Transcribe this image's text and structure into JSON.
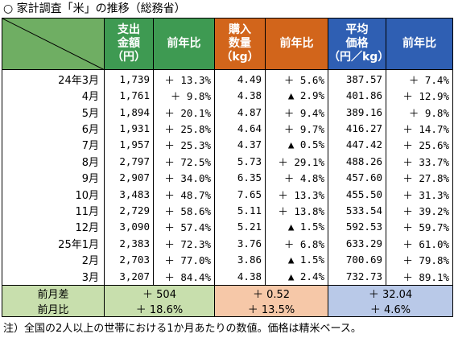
{
  "title": "○ 家計調査「米」の推移（総務省）",
  "headers": {
    "spend": [
      "支出",
      "金額",
      "（円）"
    ],
    "qty": [
      "購入",
      "数量",
      "（kg）"
    ],
    "price": [
      "平均",
      "価格",
      "（円／kg）"
    ],
    "yoy": "前年比"
  },
  "rows": [
    {
      "label": "24年3月",
      "spend": "1,739",
      "spend_yoy": "＋ 13.3%",
      "qty": "4.49",
      "qty_yoy": "＋ 5.6%",
      "price": "387.57",
      "price_yoy": "＋ 7.4%"
    },
    {
      "label": "4月",
      "spend": "1,761",
      "spend_yoy": "＋ 9.8%",
      "qty": "4.38",
      "qty_yoy": "▲ 2.9%",
      "price": "401.86",
      "price_yoy": "＋ 12.9%"
    },
    {
      "label": "5月",
      "spend": "1,894",
      "spend_yoy": "＋ 20.1%",
      "qty": "4.87",
      "qty_yoy": "＋ 9.4%",
      "price": "389.16",
      "price_yoy": "＋ 9.8%"
    },
    {
      "label": "6月",
      "spend": "1,931",
      "spend_yoy": "＋ 25.8%",
      "qty": "4.64",
      "qty_yoy": "＋ 9.7%",
      "price": "416.27",
      "price_yoy": "＋ 14.7%"
    },
    {
      "label": "7月",
      "spend": "1,957",
      "spend_yoy": "＋ 25.3%",
      "qty": "4.37",
      "qty_yoy": "▲ 0.5%",
      "price": "447.42",
      "price_yoy": "＋ 25.6%"
    },
    {
      "label": "8月",
      "spend": "2,797",
      "spend_yoy": "＋ 72.5%",
      "qty": "5.73",
      "qty_yoy": "＋ 29.1%",
      "price": "488.26",
      "price_yoy": "＋ 33.7%"
    },
    {
      "label": "9月",
      "spend": "2,907",
      "spend_yoy": "＋ 34.0%",
      "qty": "6.35",
      "qty_yoy": "＋ 4.8%",
      "price": "457.60",
      "price_yoy": "＋ 27.8%"
    },
    {
      "label": "10月",
      "spend": "3,483",
      "spend_yoy": "＋ 48.7%",
      "qty": "7.65",
      "qty_yoy": "＋ 13.3%",
      "price": "455.50",
      "price_yoy": "＋ 31.3%"
    },
    {
      "label": "11月",
      "spend": "2,729",
      "spend_yoy": "＋ 58.6%",
      "qty": "5.11",
      "qty_yoy": "＋ 13.8%",
      "price": "533.54",
      "price_yoy": "＋ 39.2%"
    },
    {
      "label": "12月",
      "spend": "3,090",
      "spend_yoy": "＋ 57.4%",
      "qty": "5.21",
      "qty_yoy": "▲ 1.5%",
      "price": "592.53",
      "price_yoy": "＋ 59.7%"
    },
    {
      "label": "25年1月",
      "spend": "2,383",
      "spend_yoy": "＋ 72.3%",
      "qty": "3.76",
      "qty_yoy": "＋ 6.8%",
      "price": "633.29",
      "price_yoy": "＋ 61.0%"
    },
    {
      "label": "2月",
      "spend": "2,703",
      "spend_yoy": "＋ 77.0%",
      "qty": "3.86",
      "qty_yoy": "▲ 1.5%",
      "price": "700.69",
      "price_yoy": "＋ 79.8%"
    },
    {
      "label": "3月",
      "spend": "3,207",
      "spend_yoy": "＋ 84.4%",
      "qty": "4.38",
      "qty_yoy": "▲ 2.4%",
      "price": "732.73",
      "price_yoy": "＋ 89.1%"
    }
  ],
  "footer": {
    "diff_label": "前月差",
    "ratio_label": "前月比",
    "spend_diff": "＋ 504",
    "spend_ratio": "＋ 18.6%",
    "qty_diff": "＋ 0.52",
    "qty_ratio": "＋ 13.5%",
    "price_diff": "＋ 32.04",
    "price_ratio": "＋ 4.6%"
  },
  "note": "注）全国の2人以上の世帯における1か月あたりの数値。価格は精米ベース。",
  "colors": {
    "green_header": "#3e9a52",
    "orange_header": "#d2651b",
    "blue_header": "#2f5fb3",
    "green_light": "#c8dfad",
    "orange_light": "#f6c8a8",
    "blue_light": "#b9c9e8"
  }
}
